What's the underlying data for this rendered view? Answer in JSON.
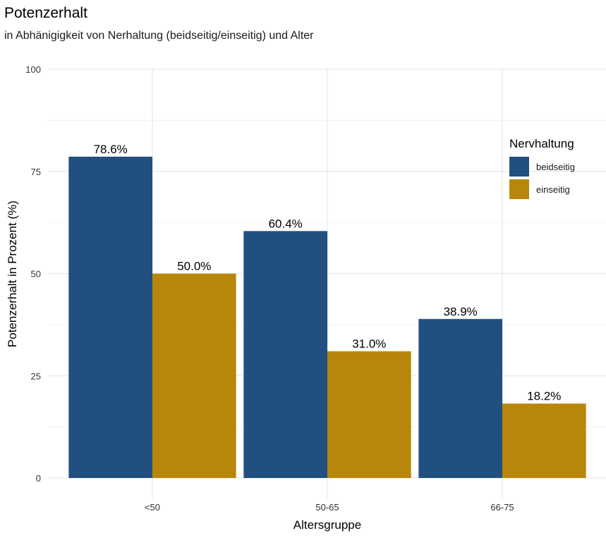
{
  "chart_data": {
    "type": "bar",
    "title": "Potenzerhalt",
    "subtitle": "in Abhänigigkeit von Nerhaltung (beidseitig/einseitig) und Alter",
    "xlabel": "Altersgruppe",
    "ylabel": "Potenzerhalt in Prozent (%)",
    "ylim": [
      0,
      100
    ],
    "yticks": [
      0,
      25,
      50,
      75,
      100
    ],
    "grid": true,
    "legend": {
      "title": "Nervhaltung",
      "placement": "top-right"
    },
    "categories": [
      "<50",
      "50-65",
      "66-75"
    ],
    "series": [
      {
        "name": "beidseitig",
        "color": "#215080",
        "values": [
          78.6,
          60.4,
          38.9
        ],
        "labels": [
          "78.6%",
          "60.4%",
          "38.9%"
        ]
      },
      {
        "name": "einseitig",
        "color": "#B8860B",
        "values": [
          50.0,
          31.0,
          18.2
        ],
        "labels": [
          "50.0%",
          "31.0%",
          "18.2%"
        ]
      }
    ]
  }
}
